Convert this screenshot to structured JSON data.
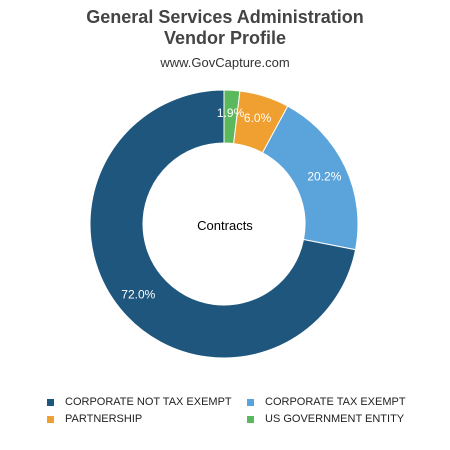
{
  "chart_data": {
    "type": "pie",
    "title_line1": "General Services Administration",
    "title_line2": "Vendor Profile",
    "subtitle": "www.GovCapture.com",
    "center_label": "Contracts",
    "legend_position": "bottom",
    "slices": [
      {
        "name": "US GOVERNMENT ENTITY",
        "value": 1.9,
        "label": "1.9%",
        "color": "#5cb85c"
      },
      {
        "name": "PARTNERSHIP",
        "value": 6.0,
        "label": "6.0%",
        "color": "#f0a030"
      },
      {
        "name": "CORPORATE TAX EXEMPT",
        "value": 20.2,
        "label": "20.2%",
        "color": "#5ba3db"
      },
      {
        "name": "CORPORATE NOT TAX EXEMPT",
        "value": 72.0,
        "label": "72.0%",
        "color": "#1f567d"
      }
    ],
    "legend": [
      {
        "name": "CORPORATE NOT TAX EXEMPT",
        "color": "#1f567d"
      },
      {
        "name": "CORPORATE TAX EXEMPT",
        "color": "#5ba3db"
      },
      {
        "name": "PARTNERSHIP",
        "color": "#f0a030"
      },
      {
        "name": "US GOVERNMENT ENTITY",
        "color": "#5cb85c"
      }
    ]
  }
}
